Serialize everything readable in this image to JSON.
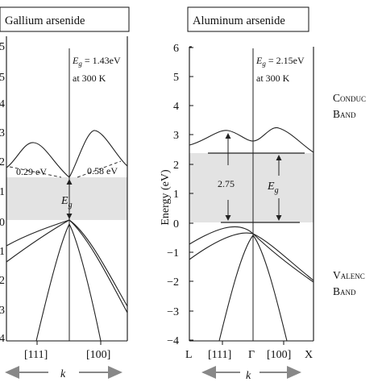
{
  "left_panel": {
    "title": "Gallium arsenide",
    "eg_symbol": "E",
    "eg_sub": "g",
    "eg_value": " = 1.43eV",
    "temp": "at 300 K",
    "annotation_left": "0.29 eV",
    "annotation_right": "0.58 eV",
    "gap_symbol": "E",
    "gap_sub": "g",
    "y_ticks_visible": [
      "5",
      "5",
      "4",
      "3",
      "2",
      "1",
      "0",
      "1",
      "2",
      "3",
      "4"
    ],
    "x_labels": [
      "[111]",
      "[100]"
    ],
    "k_label": "k"
  },
  "right_panel": {
    "title": "Aluminum arsenide",
    "eg_symbol": "E",
    "eg_sub": "g",
    "eg_value": " = 2.15eV",
    "temp": "at 300 K",
    "gap_value": "2.75",
    "gap_symbol": "E",
    "gap_sub": "g",
    "y_ticks": [
      "6",
      "5",
      "4",
      "3",
      "2",
      "1",
      "0",
      "−1",
      "−2",
      "−3",
      "−4"
    ],
    "y_axis_label": "Energy (eV)",
    "x_labels": [
      "L",
      "[111]",
      "Γ",
      "[100]",
      "X"
    ],
    "k_label": "k"
  },
  "band_labels": {
    "conduction_line1": "Conduc",
    "conduction_line2": "Band",
    "valence_line1": "Valenc",
    "valence_line2": "Band"
  }
}
